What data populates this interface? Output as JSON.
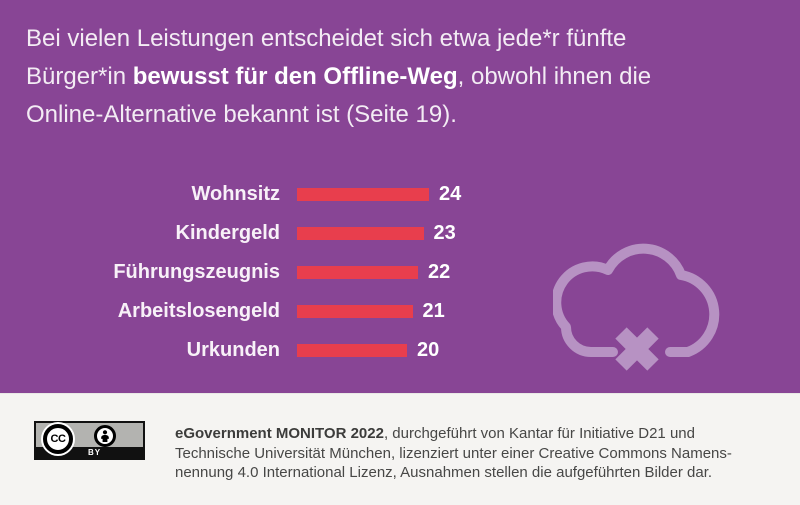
{
  "headline": {
    "line1": "Bei vielen Leistungen entscheidet sich etwa jede*r fünfte",
    "line2_pre": "Bürger*in ",
    "line2_bold": "bewusst für den Offline-Weg",
    "line2_post": ", obwohl ihnen die",
    "line3": "Online-Alternative bekannt ist (Seite 19)."
  },
  "chart_data": {
    "type": "bar",
    "orientation": "horizontal",
    "categories": [
      "Wohnsitz",
      "Kindergeld",
      "Führungszeugnis",
      "Arbeitslosengeld",
      "Urkunden"
    ],
    "values": [
      24,
      23,
      22,
      21,
      20
    ],
    "value_labels_shown": true,
    "bar_color": "#e83e4d",
    "axis_shown": false,
    "legend": "none"
  },
  "icons": {
    "cloud_offline": "cloud-with-x-icon",
    "cc": "creative-commons-circle-icon",
    "attribution": "attribution-person-icon"
  },
  "footer": {
    "badge_cc_label": "CC",
    "badge_by_label": "BY",
    "text_bold": "eGovernment MONITOR 2022",
    "text_line1_rest": ", durchgeführt von Kantar für Initiative D21 und",
    "text_line2": "Technische Universität München, lizenziert unter einer Creative Commons Namens-",
    "text_line3": "nennung 4.0 International Lizenz, Ausnahmen stellen die aufgeführten Bilder dar."
  },
  "colors": {
    "background": "#884595",
    "bar": "#e83e4d",
    "headline_text": "#f3ecf4",
    "cloud": "#b792c3",
    "footer_background": "#f5f4f2",
    "footer_text": "#474746"
  }
}
